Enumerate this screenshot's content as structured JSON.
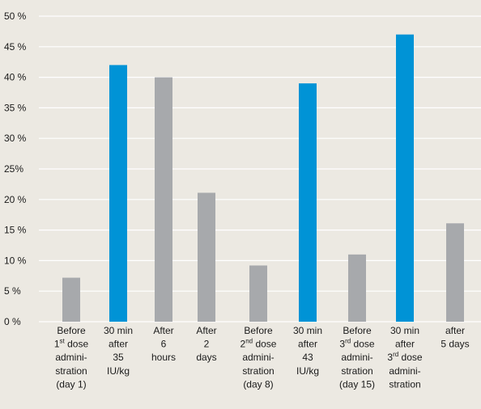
{
  "chart_data": {
    "type": "bar",
    "title": "",
    "xlabel": "",
    "ylabel": "",
    "ylim": [
      0,
      50
    ],
    "grid": true,
    "y_ticks": [
      "0 %",
      "5 %",
      "10 %",
      "15 %",
      "20 %",
      "25%",
      "30 %",
      "35 %",
      "40 %",
      "45 %",
      "50 %"
    ],
    "colors": {
      "baseline": "#a7a9ac",
      "post_dose": "#0093d6",
      "background": "#ece9e2",
      "grid": "#ffffff"
    },
    "categories": [
      {
        "lines": [
          [
            "Before"
          ],
          [
            "1",
            {
              "sup": "st"
            },
            " dose"
          ],
          [
            "admini-"
          ],
          [
            "stration"
          ],
          [
            "(day 1)"
          ]
        ],
        "value": 7.2,
        "kind": "baseline"
      },
      {
        "lines": [
          [
            "30 min"
          ],
          [
            "after"
          ],
          [
            "35"
          ],
          [
            "IU/kg"
          ]
        ],
        "value": 42,
        "kind": "post_dose"
      },
      {
        "lines": [
          [
            "After"
          ],
          [
            "6"
          ],
          [
            "hours"
          ]
        ],
        "value": 40,
        "kind": "baseline"
      },
      {
        "lines": [
          [
            "After"
          ],
          [
            "2"
          ],
          [
            "days"
          ]
        ],
        "value": 21.1,
        "kind": "baseline"
      },
      {
        "lines": [
          [
            "Before"
          ],
          [
            "2",
            {
              "sup": "nd"
            },
            " dose"
          ],
          [
            "admini-"
          ],
          [
            "stration"
          ],
          [
            "(day 8)"
          ]
        ],
        "value": 9.2,
        "kind": "baseline"
      },
      {
        "lines": [
          [
            "30 min"
          ],
          [
            "after"
          ],
          [
            "43"
          ],
          [
            "IU/kg"
          ]
        ],
        "value": 39,
        "kind": "post_dose"
      },
      {
        "lines": [
          [
            "Before"
          ],
          [
            "3",
            {
              "sup": "rd"
            },
            " dose"
          ],
          [
            "admini-"
          ],
          [
            "stration"
          ],
          [
            "(day 15)"
          ]
        ],
        "value": 11,
        "kind": "baseline"
      },
      {
        "lines": [
          [
            "30 min"
          ],
          [
            "after"
          ],
          [
            "3",
            {
              "sup": "rd"
            },
            " dose"
          ],
          [
            "admini-"
          ],
          [
            "stration"
          ]
        ],
        "value": 47,
        "kind": "post_dose"
      },
      {
        "lines": [
          [
            "after"
          ],
          [
            "5 days"
          ]
        ],
        "value": 16.1,
        "kind": "baseline"
      }
    ]
  }
}
